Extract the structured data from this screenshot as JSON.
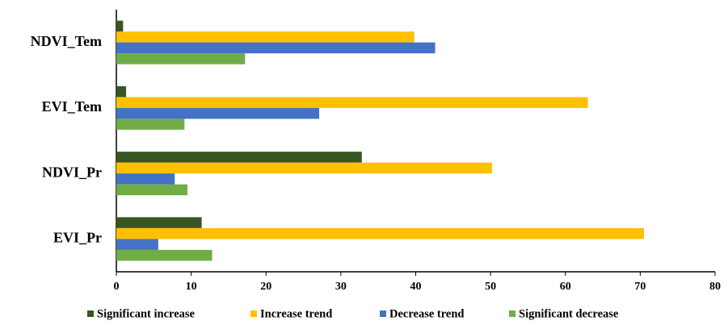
{
  "chart_data": {
    "type": "hbar",
    "categories": [
      "NDVI_Tem",
      "EVI_Tem",
      "NDVI_Pr",
      "EVI_Pr"
    ],
    "series": [
      {
        "name": "Significant increase",
        "color": "#375623",
        "values": [
          0.9,
          1.3,
          32.8,
          11.4
        ]
      },
      {
        "name": "Increase trend",
        "color": "#ffc000",
        "values": [
          39.8,
          63.0,
          50.2,
          70.5
        ]
      },
      {
        "name": "Decrease trend",
        "color": "#4472c4",
        "values": [
          42.6,
          27.1,
          7.8,
          5.6
        ]
      },
      {
        "name": "Significant decrease",
        "color": "#70ad47",
        "values": [
          17.2,
          9.1,
          9.5,
          12.8
        ]
      }
    ],
    "xlim": [
      0,
      80
    ],
    "xticks": [
      0,
      10,
      20,
      30,
      40,
      50,
      60,
      70,
      80
    ],
    "grid": false
  }
}
